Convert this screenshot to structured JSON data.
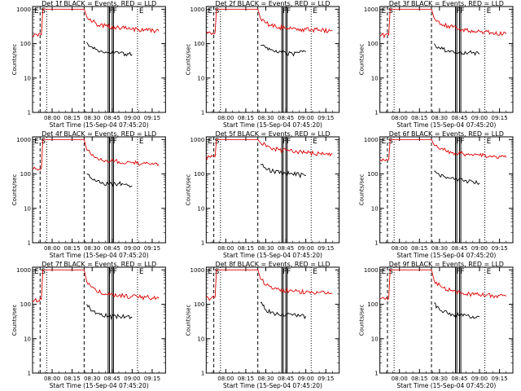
{
  "time_labels": [
    "08:00",
    "08:15",
    "08:30",
    "08:45",
    "09:00",
    "09:15"
  ],
  "y_tick_labels": [
    "1000",
    "100",
    "10",
    "1"
  ],
  "ylabel": "Counts/sec",
  "xlabel": "Start Time (15-Sep-04 07:45:20)",
  "marker_labels": {
    "E": "E",
    "S": "S",
    "F": "F"
  },
  "colors": {
    "events": "#000000",
    "lld": "#dd0000",
    "axes": "#000000"
  },
  "chart_data": [
    {
      "title": "Det 1f BLACK = Events, RED = LLD",
      "type": "line",
      "series": [
        {
          "name": "Events",
          "x": [
            "08:26",
            "08:30",
            "08:36",
            "08:42",
            "08:50",
            "08:55",
            "09:00"
          ],
          "y": [
            110,
            80,
            60,
            55,
            52,
            50,
            48
          ]
        },
        {
          "name": "LLD",
          "x": [
            "07:45",
            "07:52",
            "07:53",
            "07:55",
            "08:24",
            "08:26",
            "08:33",
            "08:40",
            "08:50",
            "09:00",
            "09:10",
            "09:20"
          ],
          "y": [
            170,
            180,
            1000,
            1000,
            1000,
            600,
            380,
            330,
            290,
            270,
            250,
            230
          ]
        }
      ]
    },
    {
      "title": "Det 2f BLACK = Events, RED = LLD",
      "type": "line",
      "series": [
        {
          "name": "Events",
          "x": [
            "08:26",
            "08:30",
            "08:36",
            "08:42",
            "08:50",
            "08:55",
            "09:00"
          ],
          "y": [
            90,
            75,
            60,
            55,
            50,
            55,
            58
          ]
        },
        {
          "name": "LLD",
          "x": [
            "07:45",
            "07:52",
            "07:53",
            "07:55",
            "08:24",
            "08:26",
            "08:33",
            "08:40",
            "08:50",
            "09:00",
            "09:10",
            "09:20"
          ],
          "y": [
            200,
            210,
            1000,
            1000,
            1000,
            550,
            350,
            300,
            270,
            260,
            250,
            240
          ]
        }
      ]
    },
    {
      "title": "Det 3f BLACK = Events, RED = LLD",
      "type": "line",
      "series": [
        {
          "name": "Events",
          "x": [
            "08:26",
            "08:30",
            "08:36",
            "08:42",
            "08:50",
            "08:55",
            "09:00"
          ],
          "y": [
            100,
            75,
            60,
            55,
            52,
            55,
            50
          ]
        },
        {
          "name": "LLD",
          "x": [
            "07:45",
            "07:52",
            "07:53",
            "07:55",
            "08:24",
            "08:26",
            "08:33",
            "08:40",
            "08:50",
            "09:00",
            "09:10",
            "09:20"
          ],
          "y": [
            170,
            180,
            1000,
            1000,
            1000,
            550,
            350,
            300,
            250,
            230,
            210,
            190
          ]
        }
      ]
    },
    {
      "title": "Det 4f BLACK = Events, RED = LLD",
      "type": "line",
      "series": [
        {
          "name": "Events",
          "x": [
            "08:26",
            "08:30",
            "08:36",
            "08:42",
            "08:50",
            "08:55",
            "09:00"
          ],
          "y": [
            100,
            70,
            55,
            50,
            52,
            50,
            45
          ]
        },
        {
          "name": "LLD",
          "x": [
            "07:45",
            "07:52",
            "07:53",
            "07:55",
            "08:24",
            "08:26",
            "08:33",
            "08:40",
            "08:50",
            "09:00",
            "09:10",
            "09:20"
          ],
          "y": [
            140,
            150,
            1000,
            1000,
            1000,
            500,
            300,
            250,
            230,
            210,
            200,
            190
          ]
        }
      ]
    },
    {
      "title": "Det 5f BLACK = Events, RED = LLD",
      "type": "line",
      "series": [
        {
          "name": "Events",
          "x": [
            "08:26",
            "08:30",
            "08:36",
            "08:42",
            "08:50",
            "08:55",
            "09:00"
          ],
          "y": [
            190,
            140,
            120,
            110,
            100,
            95,
            90
          ]
        },
        {
          "name": "LLD",
          "x": [
            "07:45",
            "07:52",
            "07:53",
            "07:55",
            "08:24",
            "08:26",
            "08:33",
            "08:40",
            "08:50",
            "09:00",
            "09:10",
            "09:20"
          ],
          "y": [
            300,
            320,
            1000,
            1000,
            1000,
            800,
            600,
            500,
            450,
            420,
            400,
            380
          ]
        }
      ]
    },
    {
      "title": "Det 6f BLACK = Events, RED = LLD",
      "type": "line",
      "series": [
        {
          "name": "Events",
          "x": [
            "08:26",
            "08:30",
            "08:36",
            "08:42",
            "08:50",
            "08:55",
            "09:00"
          ],
          "y": [
            120,
            90,
            80,
            70,
            65,
            60,
            55
          ]
        },
        {
          "name": "LLD",
          "x": [
            "07:45",
            "07:52",
            "07:53",
            "07:55",
            "08:24",
            "08:26",
            "08:33",
            "08:40",
            "08:50",
            "09:00",
            "09:10",
            "09:20"
          ],
          "y": [
            250,
            260,
            1000,
            1000,
            1000,
            700,
            500,
            420,
            380,
            350,
            320,
            300
          ]
        }
      ]
    },
    {
      "title": "Det 7f BLACK = Events, RED = LLD",
      "type": "line",
      "series": [
        {
          "name": "Events",
          "x": [
            "08:26",
            "08:30",
            "08:36",
            "08:42",
            "08:50",
            "08:55",
            "09:00"
          ],
          "y": [
            100,
            65,
            50,
            45,
            45,
            43,
            42
          ]
        },
        {
          "name": "LLD",
          "x": [
            "07:45",
            "07:52",
            "07:53",
            "07:55",
            "08:24",
            "08:26",
            "08:33",
            "08:40",
            "08:50",
            "09:00",
            "09:10",
            "09:20"
          ],
          "y": [
            130,
            140,
            1000,
            1000,
            1000,
            450,
            250,
            200,
            180,
            170,
            160,
            150
          ]
        }
      ]
    },
    {
      "title": "Det 8f BLACK = Events, RED = LLD",
      "type": "line",
      "series": [
        {
          "name": "Events",
          "x": [
            "08:26",
            "08:30",
            "08:36",
            "08:42",
            "08:50",
            "08:55",
            "09:00"
          ],
          "y": [
            110,
            70,
            55,
            50,
            48,
            46,
            45
          ]
        },
        {
          "name": "LLD",
          "x": [
            "07:45",
            "07:52",
            "07:53",
            "07:55",
            "08:24",
            "08:26",
            "08:33",
            "08:40",
            "08:50",
            "09:00",
            "09:10",
            "09:20"
          ],
          "y": [
            150,
            160,
            1000,
            1000,
            1000,
            550,
            330,
            270,
            240,
            230,
            220,
            210
          ]
        }
      ]
    },
    {
      "title": "Det 9f BLACK = Events, RED = LLD",
      "type": "line",
      "series": [
        {
          "name": "Events",
          "x": [
            "08:26",
            "08:30",
            "08:36",
            "08:42",
            "08:50",
            "08:55",
            "09:00"
          ],
          "y": [
            110,
            70,
            55,
            50,
            47,
            45,
            43
          ]
        },
        {
          "name": "LLD",
          "x": [
            "07:45",
            "07:52",
            "07:53",
            "07:55",
            "08:24",
            "08:26",
            "08:33",
            "08:40",
            "08:50",
            "09:00",
            "09:10",
            "09:20"
          ],
          "y": [
            140,
            150,
            1000,
            1000,
            1000,
            500,
            300,
            240,
            200,
            190,
            180,
            170
          ]
        }
      ]
    }
  ]
}
